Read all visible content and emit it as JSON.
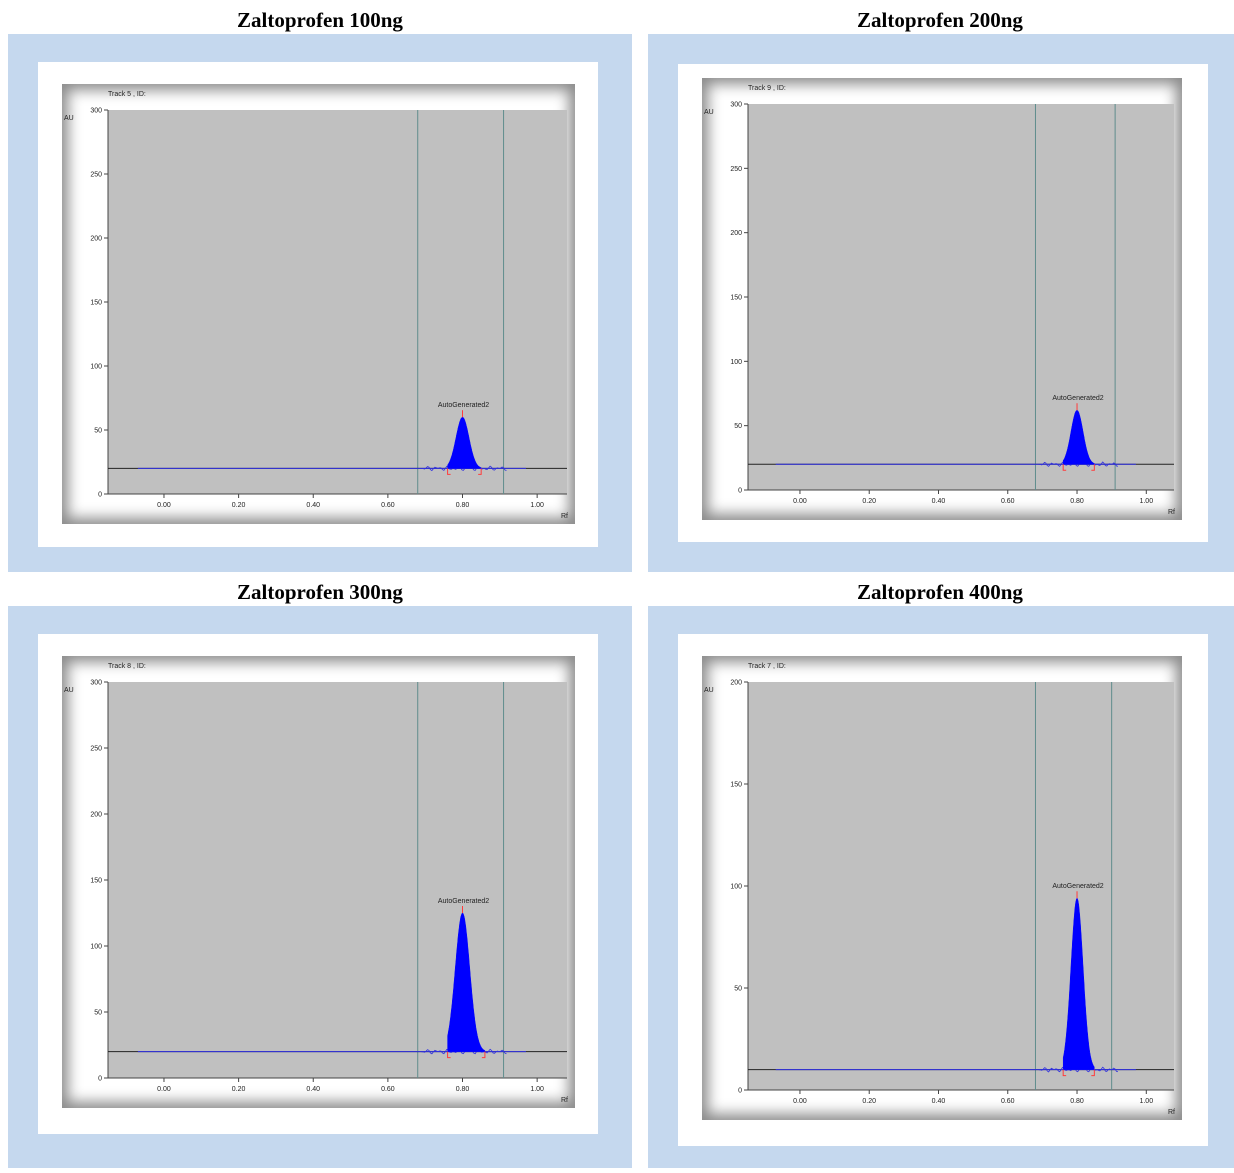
{
  "panels": [
    {
      "title": "Zaltoprofen 100ng"
    },
    {
      "title": "Zaltoprofen 200ng"
    },
    {
      "title": "Zaltoprofen 300ng"
    },
    {
      "title": "Zaltoprofen 400ng"
    }
  ],
  "chart_data": [
    {
      "type": "line",
      "track_label": "Track  5 , ID:",
      "ylabel": "AU",
      "xlabel": "Rf",
      "ylim": [
        0,
        300
      ],
      "yticks": [
        0,
        50,
        100,
        150,
        200,
        250,
        300
      ],
      "xlim": [
        -0.15,
        1.08
      ],
      "xticks": [
        "0.00",
        "0.20",
        "0.40",
        "0.60",
        "0.80",
        "1.00"
      ],
      "baseline": 20,
      "vertical_lines_rf": [
        0.68,
        0.91
      ],
      "peak": {
        "label": "AutoGenerated2",
        "rf": 0.8,
        "height": 60,
        "start_rf": 0.76,
        "end_rf": 0.85
      },
      "line_color": "#3030e0",
      "fill_color": "#0000ff"
    },
    {
      "type": "line",
      "track_label": "Track  9 , ID:",
      "ylabel": "AU",
      "xlabel": "Rf",
      "ylim": [
        0,
        300
      ],
      "yticks": [
        0,
        50,
        100,
        150,
        200,
        250,
        300
      ],
      "xlim": [
        -0.15,
        1.08
      ],
      "xticks": [
        "0.00",
        "0.20",
        "0.40",
        "0.60",
        "0.80",
        "1.00"
      ],
      "baseline": 20,
      "vertical_lines_rf": [
        0.68,
        0.91
      ],
      "peak": {
        "label": "AutoGenerated2",
        "rf": 0.8,
        "height": 62,
        "start_rf": 0.76,
        "end_rf": 0.85
      },
      "line_color": "#3030e0",
      "fill_color": "#0000ff"
    },
    {
      "type": "line",
      "track_label": "Track  8 , ID:",
      "ylabel": "AU",
      "xlabel": "Rf",
      "ylim": [
        0,
        300
      ],
      "yticks": [
        0,
        50,
        100,
        150,
        200,
        250,
        300
      ],
      "xlim": [
        -0.15,
        1.08
      ],
      "xticks": [
        "0.00",
        "0.20",
        "0.40",
        "0.60",
        "0.80",
        "1.00"
      ],
      "baseline": 20,
      "vertical_lines_rf": [
        0.68,
        0.91
      ],
      "peak": {
        "label": "AutoGenerated2",
        "rf": 0.8,
        "height": 125,
        "start_rf": 0.76,
        "end_rf": 0.86
      },
      "line_color": "#3030e0",
      "fill_color": "#0000ff"
    },
    {
      "type": "line",
      "track_label": "Track  7 , ID:",
      "ylabel": "AU",
      "xlabel": "Rf",
      "ylim": [
        0,
        200
      ],
      "yticks": [
        0,
        50,
        100,
        150,
        200
      ],
      "xlim": [
        -0.15,
        1.08
      ],
      "xticks": [
        "0.00",
        "0.20",
        "0.40",
        "0.60",
        "0.80",
        "1.00"
      ],
      "baseline": 10,
      "vertical_lines_rf": [
        0.68,
        0.9
      ],
      "peak": {
        "label": "AutoGenerated2",
        "rf": 0.8,
        "height": 94,
        "start_rf": 0.76,
        "end_rf": 0.85
      },
      "line_color": "#3030e0",
      "fill_color": "#0000ff"
    }
  ]
}
